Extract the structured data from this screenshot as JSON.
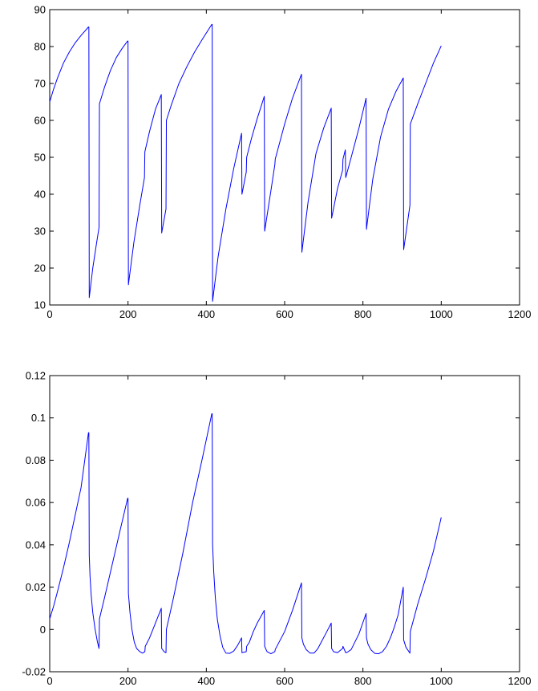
{
  "figure": {
    "background": "#ffffff",
    "series_color": "#0000ff"
  },
  "chart_data": [
    {
      "type": "line",
      "title": "",
      "xlabel": "",
      "ylabel": "",
      "xlim": [
        0,
        1200
      ],
      "ylim": [
        10,
        90
      ],
      "xticks": [
        0,
        200,
        400,
        600,
        800,
        1000,
        1200
      ],
      "xtick_labels": [
        "0",
        "200",
        "400",
        "600",
        "800",
        "1000",
        "1200"
      ],
      "yticks": [
        10,
        20,
        30,
        40,
        50,
        60,
        70,
        80,
        90
      ],
      "ytick_labels": [
        "10",
        "20",
        "30",
        "40",
        "50",
        "60",
        "70",
        "80",
        "90"
      ],
      "grid": false,
      "series": [
        {
          "color": "#0000ff",
          "x": [
            0,
            10,
            20,
            35,
            50,
            65,
            80,
            99,
            100,
            101,
            110,
            120,
            126,
            127,
            140,
            155,
            170,
            185,
            199,
            200,
            201,
            215,
            230,
            242,
            243,
            255,
            270,
            285,
            286,
            297,
            298,
            310,
            330,
            350,
            370,
            390,
            414,
            415,
            416,
            430,
            450,
            470,
            490,
            491,
            502,
            503,
            515,
            530,
            548,
            549,
            565,
            575,
            576,
            600,
            620,
            643,
            644,
            660,
            680,
            700,
            719,
            720,
            735,
            748,
            749,
            755,
            756,
            770,
            790,
            808,
            809,
            825,
            845,
            865,
            885,
            903,
            904,
            920,
            921,
            940,
            960,
            980,
            1000
          ],
          "y": [
            65,
            68.5,
            71.5,
            75.5,
            78.5,
            81,
            83,
            85.3,
            85.3,
            12,
            20,
            27,
            31,
            64.5,
            69,
            73.5,
            77,
            79.5,
            81.5,
            81.5,
            15.5,
            27,
            37,
            44.5,
            51.5,
            57,
            63,
            67,
            29.5,
            36,
            60,
            64,
            70,
            74.5,
            78.5,
            82,
            86,
            86,
            11,
            23,
            36,
            47,
            56.5,
            40,
            46,
            50,
            55,
            60.5,
            66.5,
            30,
            41,
            48,
            49.5,
            59,
            66,
            72.5,
            24.3,
            38,
            51,
            58,
            63.3,
            33.5,
            41.5,
            46.5,
            49.5,
            52,
            44.5,
            50,
            58,
            66,
            30.5,
            44,
            55.5,
            63,
            68,
            71.5,
            25,
            37,
            59,
            64.5,
            70,
            75.5,
            80.2
          ]
        }
      ]
    },
    {
      "type": "line",
      "title": "",
      "xlabel": "",
      "ylabel": "",
      "xlim": [
        0,
        1200
      ],
      "ylim": [
        -0.02,
        0.12
      ],
      "xticks": [
        0,
        200,
        400,
        600,
        800,
        1000,
        1200
      ],
      "xtick_labels": [
        "0",
        "200",
        "400",
        "600",
        "800",
        "1000",
        "1200"
      ],
      "yticks": [
        -0.02,
        0,
        0.02,
        0.04,
        0.06,
        0.08,
        0.1,
        0.12
      ],
      "ytick_labels": [
        "-0.02",
        "0",
        "0.02",
        "0.04",
        "0.06",
        "0.08",
        "0.1",
        "0.12"
      ],
      "grid": false,
      "series": [
        {
          "color": "#0000ff",
          "x": [
            0,
            10,
            20,
            35,
            50,
            65,
            80,
            99,
            100,
            101,
            103,
            106,
            110,
            116,
            122,
            126,
            127,
            140,
            160,
            180,
            199,
            200,
            201,
            205,
            210,
            216,
            222,
            230,
            237,
            243,
            244,
            255,
            270,
            285,
            286,
            292,
            297,
            298,
            315,
            340,
            365,
            390,
            414,
            415,
            416,
            419,
            423,
            428,
            435,
            442,
            450,
            460,
            470,
            480,
            490,
            491,
            502,
            503,
            510,
            520,
            530,
            548,
            549,
            555,
            565,
            575,
            576,
            600,
            620,
            643,
            644,
            648,
            655,
            665,
            675,
            685,
            695,
            705,
            719,
            720,
            725,
            735,
            748,
            749,
            756,
            760,
            770,
            790,
            808,
            809,
            813,
            820,
            830,
            840,
            850,
            860,
            870,
            880,
            890,
            903,
            904,
            910,
            920,
            921,
            940,
            960,
            980,
            1000
          ],
          "y": [
            0.005,
            0.011,
            0.018,
            0.029,
            0.041,
            0.054,
            0.067,
            0.093,
            0.093,
            0.035,
            0.025,
            0.016,
            0.008,
            0.0,
            -0.006,
            -0.009,
            0.005,
            0.015,
            0.031,
            0.047,
            0.062,
            0.062,
            0.017,
            0.008,
            0.0,
            -0.006,
            -0.009,
            -0.0105,
            -0.0112,
            -0.0105,
            -0.008,
            -0.004,
            0.003,
            0.01,
            -0.009,
            -0.0105,
            -0.011,
            0.0,
            0.014,
            0.036,
            0.06,
            0.081,
            0.102,
            0.102,
            0.04,
            0.027,
            0.015,
            0.005,
            -0.003,
            -0.0085,
            -0.0112,
            -0.0113,
            -0.0102,
            -0.0075,
            -0.004,
            -0.011,
            -0.0105,
            -0.008,
            -0.006,
            -0.001,
            0.003,
            0.009,
            -0.008,
            -0.0105,
            -0.0115,
            -0.0105,
            -0.0095,
            -0.001,
            0.009,
            0.022,
            -0.004,
            -0.007,
            -0.0095,
            -0.0112,
            -0.0112,
            -0.009,
            -0.0055,
            -0.002,
            0.003,
            -0.009,
            -0.0105,
            -0.011,
            -0.009,
            -0.008,
            -0.011,
            -0.0108,
            -0.0095,
            -0.002,
            0.0075,
            -0.004,
            -0.007,
            -0.0095,
            -0.0113,
            -0.0115,
            -0.0105,
            -0.008,
            -0.004,
            0.001,
            0.007,
            0.02,
            -0.005,
            -0.0085,
            -0.0112,
            -0.001,
            0.012,
            0.024,
            0.037,
            0.053
          ]
        }
      ]
    }
  ]
}
